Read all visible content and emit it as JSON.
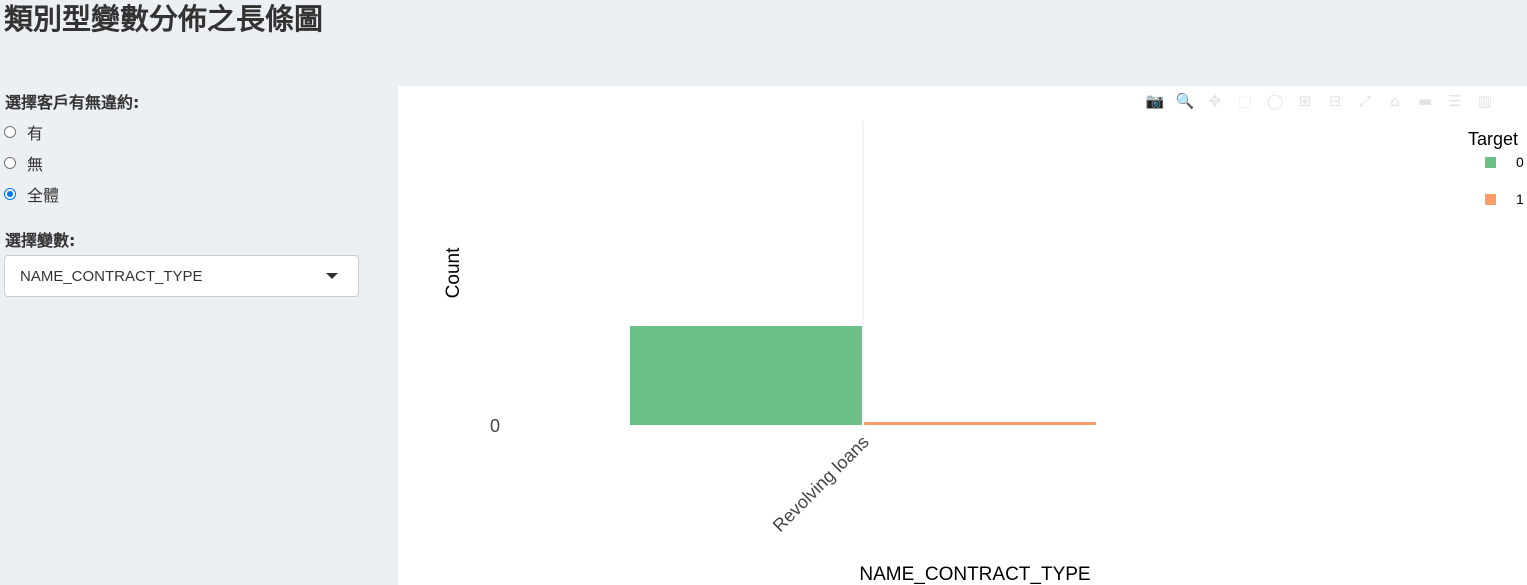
{
  "page": {
    "title": "類別型變數分佈之長條圖"
  },
  "filters": {
    "default_label": "選擇客戶有無違約:",
    "default_options": [
      {
        "label": "有",
        "checked": false
      },
      {
        "label": "無",
        "checked": false
      },
      {
        "label": "全體",
        "checked": true
      }
    ],
    "variable_label": "選擇變數:",
    "variable_selected": "NAME_CONTRACT_TYPE"
  },
  "modebar": {
    "icons": [
      "camera-icon",
      "zoom-icon",
      "pan-icon",
      "box-select-icon",
      "lasso-select-icon",
      "zoom-in-icon",
      "zoom-out-icon",
      "autoscale-icon",
      "reset-axes-icon",
      "spike-lines-icon",
      "compare-data-icon",
      "plotly-logo-icon"
    ]
  },
  "chart_data": {
    "type": "bar",
    "barmode": "group",
    "categories": [
      "Revolving loans"
    ],
    "series": [
      {
        "name": "0",
        "values": [
          1.0
        ],
        "color": "#6cbf87"
      },
      {
        "name": "1",
        "values": [
          0.03
        ],
        "color": "#fc9c6b"
      }
    ],
    "xlabel": "NAME_CONTRACT_TYPE",
    "ylabel": "Count",
    "y_tick_labels": [
      "0"
    ],
    "legend_title": "Target",
    "legend_position": "top-right",
    "grid": true
  }
}
